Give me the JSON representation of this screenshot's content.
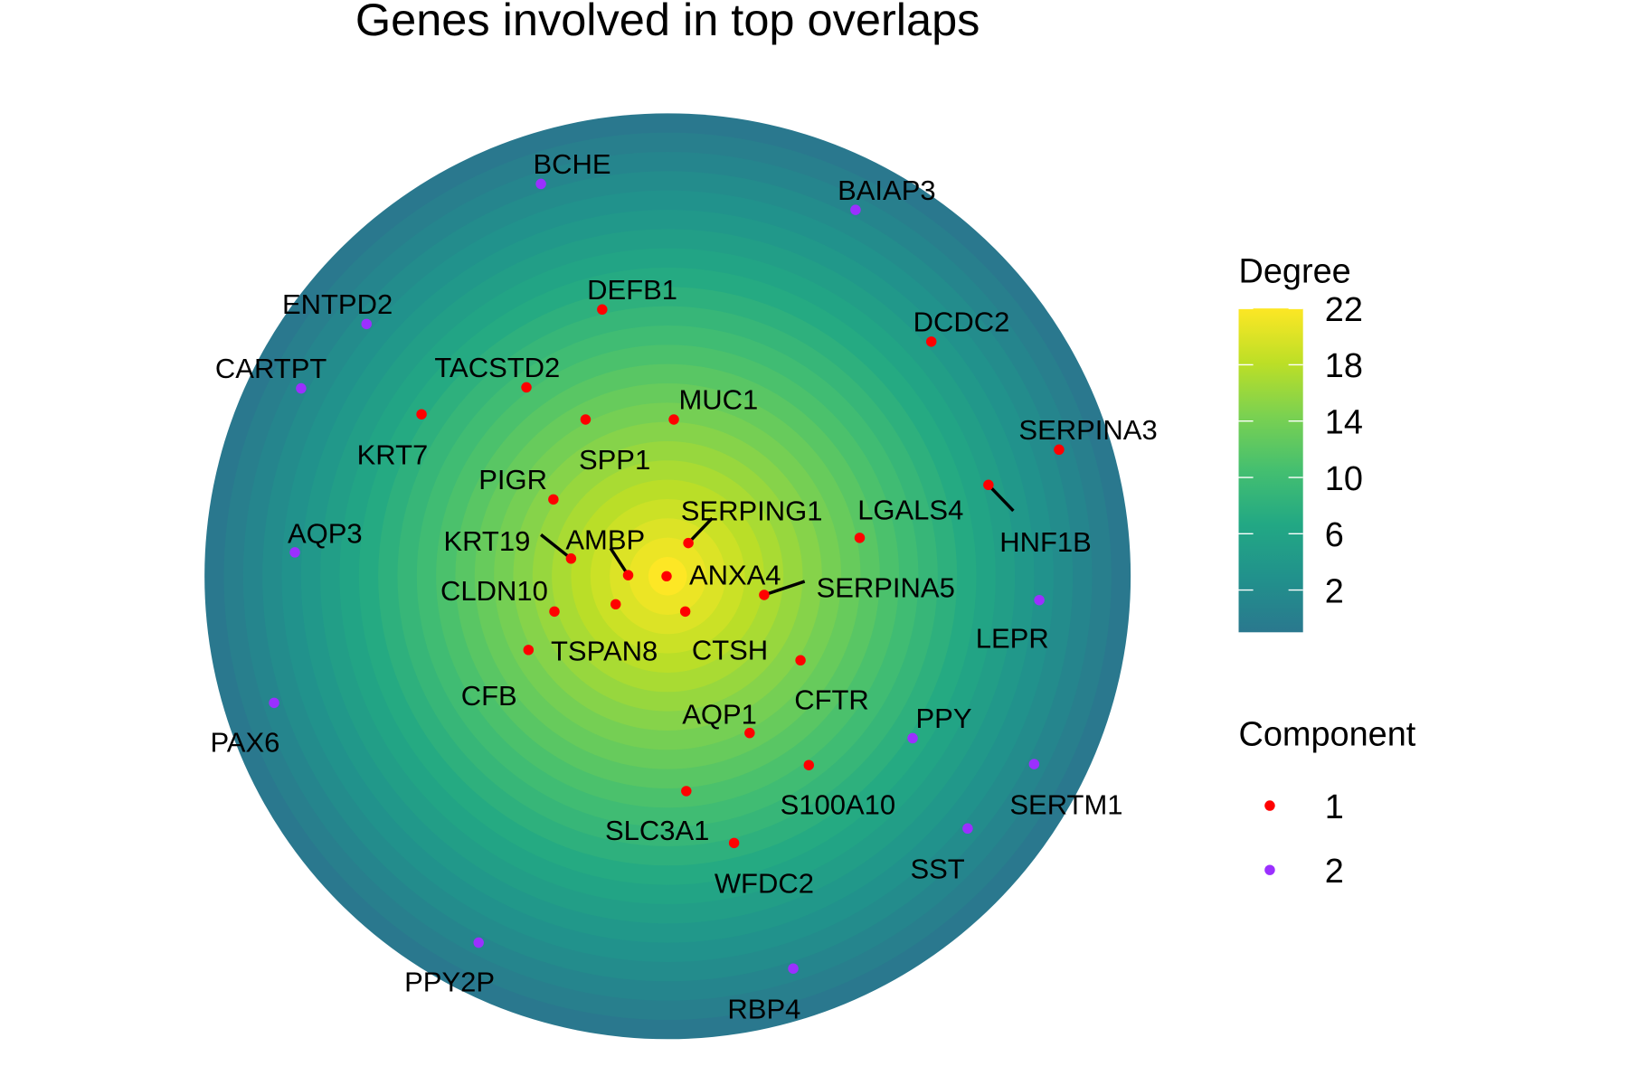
{
  "chart_data": {
    "type": "scatter",
    "title": "Genes involved in top overlaps",
    "background": "radial degree gradient (viridis), highest at centre",
    "colorbar": {
      "title": "Degree",
      "ticks": [
        2,
        6,
        10,
        14,
        18,
        22
      ],
      "range": [
        -1,
        22
      ],
      "palette": [
        "#2a788e",
        "#21918c",
        "#22a884",
        "#44bf70",
        "#7ad151",
        "#bddf26",
        "#fde725"
      ]
    },
    "legend": {
      "title": "Component",
      "placement": "right",
      "items": [
        {
          "label": "1",
          "color": "#ff0000"
        },
        {
          "label": "2",
          "color": "#9b30ff"
        }
      ]
    },
    "nodes": [
      {
        "gene": "BCHE",
        "component": 2
      },
      {
        "gene": "BAIAP3",
        "component": 2
      },
      {
        "gene": "DEFB1",
        "component": 1
      },
      {
        "gene": "ENTPD2",
        "component": 2
      },
      {
        "gene": "DCDC2",
        "component": 1
      },
      {
        "gene": "CARTPT",
        "component": 2
      },
      {
        "gene": "TACSTD2",
        "component": 1
      },
      {
        "gene": "KRT7",
        "component": 1
      },
      {
        "gene": "MUC1",
        "component": 1
      },
      {
        "gene": "SPP1",
        "component": 1
      },
      {
        "gene": "SERPINA3",
        "component": 1
      },
      {
        "gene": "PIGR",
        "component": 1
      },
      {
        "gene": "HNF1B",
        "component": 1
      },
      {
        "gene": "LGALS4",
        "component": 1
      },
      {
        "gene": "SERPING1",
        "component": 1
      },
      {
        "gene": "AQP3",
        "component": 2
      },
      {
        "gene": "KRT19",
        "component": 1
      },
      {
        "gene": "AMBP",
        "component": 1
      },
      {
        "gene": "ANXA4",
        "component": 1
      },
      {
        "gene": "SERPINA5",
        "component": 1
      },
      {
        "gene": "CLDN10",
        "component": 1
      },
      {
        "gene": "TSPAN8",
        "component": 1
      },
      {
        "gene": "CTSH",
        "component": 1
      },
      {
        "gene": "LEPR",
        "component": 2
      },
      {
        "gene": "CFB",
        "component": 1
      },
      {
        "gene": "CFTR",
        "component": 1
      },
      {
        "gene": "PAX6",
        "component": 2
      },
      {
        "gene": "AQP1",
        "component": 1
      },
      {
        "gene": "PPY",
        "component": 2
      },
      {
        "gene": "S100A10",
        "component": 1
      },
      {
        "gene": "SERTM1",
        "component": 2
      },
      {
        "gene": "SLC3A1",
        "component": 1
      },
      {
        "gene": "SST",
        "component": 2
      },
      {
        "gene": "WFDC2",
        "component": 1
      },
      {
        "gene": "PPY2P",
        "component": 2
      },
      {
        "gene": "RBP4",
        "component": 2
      }
    ]
  }
}
